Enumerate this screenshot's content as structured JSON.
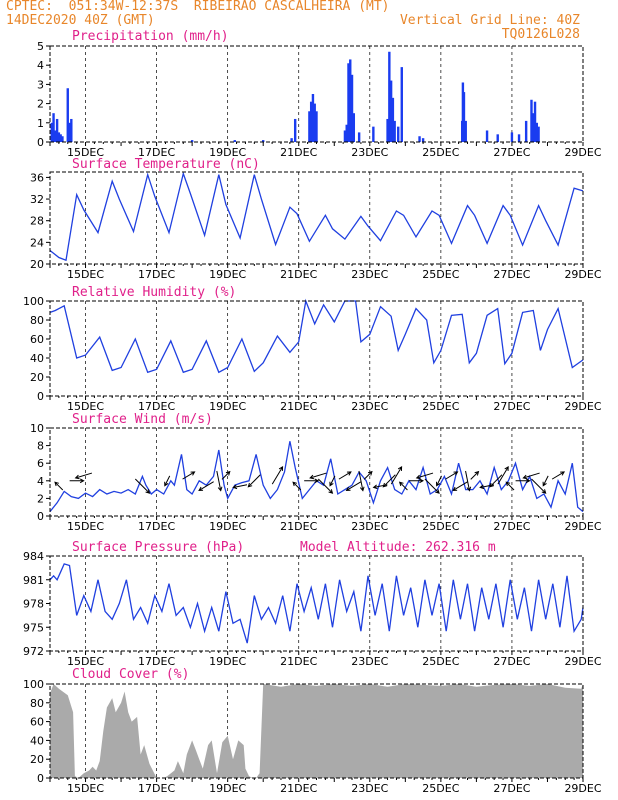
{
  "header": {
    "line1_left": "CPTEC:  051:34W-12:37S  RIBEIRAO CASCALHEIRA (MT)",
    "line2_left": "14DEC2020 40Z (GMT)",
    "line2_right": "Vertical Grid Line: 40Z",
    "line3_right": "TQ0126L028"
  },
  "colors": {
    "header": "#e8862a",
    "panel_title": "#e0208a",
    "line": "#2040e0",
    "bar": "#1a3cf0",
    "cloud": "#aaaaaa",
    "arrow": "#000000"
  },
  "x_tick_labels": [
    "15DEC",
    "17DEC",
    "19DEC",
    "21DEC",
    "23DEC",
    "25DEC",
    "27DEC",
    "29DEC"
  ],
  "chart_data": [
    {
      "type": "bar",
      "title": "Precipitation (mm/h)",
      "ylim": [
        0,
        5
      ],
      "yticks": [
        0,
        1,
        2,
        3,
        4,
        5
      ],
      "x_range_days": [
        14.0,
        29.0
      ],
      "series": [
        {
          "x": [
            14.05,
            14.1,
            14.15,
            14.2,
            14.25,
            14.3,
            14.35,
            14.5,
            14.55,
            14.6,
            18.0,
            19.2,
            20.0,
            20.8,
            20.9,
            21.3,
            21.32,
            21.35,
            21.4,
            21.45,
            21.5,
            22.3,
            22.35,
            22.4,
            22.45,
            22.5,
            22.55,
            22.7,
            23.1,
            23.5,
            23.55,
            23.6,
            23.65,
            23.7,
            23.8,
            23.9,
            24.4,
            24.5,
            25.6,
            25.62,
            25.65,
            25.7,
            26.3,
            26.6,
            27.0,
            27.2,
            27.4,
            27.55,
            27.6,
            27.65,
            27.7,
            27.75
          ],
          "values": [
            1.0,
            1.5,
            0.6,
            1.2,
            0.5,
            0.4,
            0.3,
            2.8,
            1.0,
            1.2,
            0.1,
            0.1,
            0.1,
            0.2,
            1.2,
            1.6,
            0.8,
            2.1,
            2.5,
            2.0,
            1.6,
            0.6,
            0.9,
            4.1,
            4.3,
            3.5,
            1.5,
            0.5,
            0.8,
            1.2,
            4.7,
            3.2,
            2.3,
            1.1,
            0.8,
            3.9,
            0.3,
            0.2,
            1.1,
            3.1,
            2.6,
            1.1,
            0.6,
            0.4,
            0.5,
            0.4,
            1.1,
            2.2,
            1.5,
            2.1,
            1.0,
            0.8
          ]
        }
      ]
    },
    {
      "type": "line",
      "title": "Surface Temperature (nC)",
      "ylim": [
        20,
        37
      ],
      "yticks": [
        20,
        24,
        28,
        32,
        36
      ],
      "x_range_days": [
        14.0,
        29.0
      ],
      "series": [
        {
          "x": [
            14.0,
            14.25,
            14.45,
            14.75,
            14.95,
            15.35,
            15.75,
            15.95,
            16.35,
            16.75,
            16.95,
            17.35,
            17.75,
            17.95,
            18.35,
            18.75,
            18.95,
            19.35,
            19.75,
            19.95,
            20.35,
            20.75,
            20.95,
            21.3,
            21.75,
            21.95,
            22.3,
            22.75,
            22.95,
            23.3,
            23.75,
            23.95,
            24.3,
            24.75,
            24.95,
            25.3,
            25.75,
            25.95,
            26.3,
            26.75,
            26.95,
            27.3,
            27.75,
            27.95,
            28.3,
            28.75,
            29.0
          ],
          "values": [
            22.5,
            21.2,
            20.7,
            32.8,
            30.0,
            25.8,
            35.3,
            32.0,
            26.0,
            36.5,
            32.5,
            25.8,
            36.7,
            33.0,
            25.3,
            36.5,
            31.0,
            24.8,
            36.5,
            32.0,
            23.6,
            30.5,
            29.3,
            24.2,
            29.0,
            26.5,
            24.6,
            28.8,
            27.0,
            24.3,
            29.8,
            29.0,
            25.0,
            29.8,
            29.0,
            23.8,
            30.8,
            29.0,
            23.8,
            30.8,
            29.0,
            23.5,
            30.8,
            28.0,
            23.5,
            34.0,
            33.5
          ]
        }
      ]
    },
    {
      "type": "line",
      "title": "Relative Humidity (%)",
      "ylim": [
        0,
        100
      ],
      "yticks": [
        0,
        20,
        40,
        60,
        80,
        100
      ],
      "x_range_days": [
        14.0,
        29.0
      ],
      "series": [
        {
          "x": [
            14.0,
            14.15,
            14.4,
            14.75,
            15.0,
            15.4,
            15.75,
            16.0,
            16.4,
            16.75,
            17.0,
            17.4,
            17.75,
            18.0,
            18.4,
            18.75,
            19.0,
            19.4,
            19.75,
            20.0,
            20.4,
            20.75,
            21.0,
            21.2,
            21.45,
            21.7,
            22.0,
            22.3,
            22.6,
            22.75,
            23.0,
            23.3,
            23.6,
            23.8,
            24.0,
            24.3,
            24.6,
            24.8,
            25.0,
            25.3,
            25.6,
            25.8,
            26.0,
            26.3,
            26.6,
            26.8,
            27.0,
            27.3,
            27.6,
            27.8,
            28.0,
            28.3,
            28.7,
            29.0
          ],
          "values": [
            88,
            90,
            95,
            40,
            43,
            62,
            27,
            30,
            60,
            25,
            28,
            58,
            25,
            28,
            58,
            25,
            30,
            60,
            26,
            35,
            63,
            46,
            57,
            100,
            76,
            96,
            78,
            100,
            100,
            57,
            65,
            94,
            84,
            48,
            65,
            92,
            80,
            35,
            48,
            85,
            86,
            35,
            45,
            85,
            92,
            34,
            45,
            88,
            90,
            48,
            70,
            92,
            30,
            38
          ]
        }
      ]
    },
    {
      "type": "line",
      "title": "Surface Wind (m/s)",
      "ylim": [
        0,
        10
      ],
      "yticks": [
        0,
        2,
        4,
        6,
        8,
        10
      ],
      "x_range_days": [
        14.0,
        29.0
      ],
      "series": [
        {
          "x": [
            14.0,
            14.2,
            14.4,
            14.6,
            14.8,
            15.0,
            15.2,
            15.4,
            15.6,
            15.8,
            16.0,
            16.2,
            16.4,
            16.6,
            16.7,
            16.85,
            17.0,
            17.2,
            17.4,
            17.5,
            17.7,
            17.85,
            18.0,
            18.2,
            18.4,
            18.6,
            18.75,
            18.9,
            19.0,
            19.2,
            19.4,
            19.6,
            19.8,
            20.0,
            20.2,
            20.4,
            20.6,
            20.75,
            20.9,
            21.1,
            21.3,
            21.5,
            21.7,
            21.9,
            22.1,
            22.3,
            22.5,
            22.7,
            22.9,
            23.1,
            23.3,
            23.5,
            23.7,
            23.9,
            24.1,
            24.3,
            24.5,
            24.7,
            24.9,
            25.1,
            25.3,
            25.5,
            25.7,
            25.9,
            26.1,
            26.3,
            26.5,
            26.7,
            26.9,
            27.1,
            27.3,
            27.5,
            27.7,
            27.9,
            28.1,
            28.3,
            28.5,
            28.7,
            28.85,
            29.0
          ],
          "values": [
            0.5,
            1.5,
            2.8,
            2.2,
            2.0,
            2.6,
            2.2,
            3.0,
            2.5,
            2.8,
            2.6,
            3.0,
            2.5,
            4.5,
            3.5,
            2.5,
            3.0,
            2.5,
            4.0,
            3.5,
            7.0,
            3.0,
            2.5,
            4.0,
            3.5,
            4.5,
            7.5,
            3.5,
            2.0,
            3.5,
            3.8,
            4.0,
            7.0,
            3.5,
            2.0,
            3.0,
            5.0,
            8.5,
            5.5,
            2.0,
            3.0,
            4.0,
            3.5,
            6.5,
            2.5,
            3.0,
            3.5,
            5.0,
            4.0,
            1.5,
            4.0,
            5.5,
            3.0,
            2.5,
            4.0,
            3.0,
            5.5,
            2.5,
            3.0,
            4.5,
            2.5,
            6.0,
            3.0,
            3.0,
            4.0,
            2.5,
            5.5,
            3.0,
            4.0,
            6.0,
            3.0,
            4.5,
            2.0,
            2.5,
            1.0,
            4.0,
            2.5,
            6.0,
            1.0,
            0.5
          ]
        }
      ],
      "wind_vector_times": [
        14.25,
        14.75,
        14.95,
        16.6,
        17.3,
        17.9,
        18.4,
        18.75,
        18.95,
        19.35,
        19.75,
        20.4,
        20.95,
        21.35,
        21.55,
        21.75,
        21.95,
        22.3,
        22.55,
        22.75,
        22.95,
        23.3,
        23.55,
        23.75,
        23.95,
        24.3,
        24.55,
        24.75,
        24.95,
        25.3,
        25.55,
        25.75,
        25.95,
        26.3,
        26.55,
        26.75,
        26.95,
        27.3,
        27.55,
        27.75,
        27.95,
        28.3
      ]
    },
    {
      "type": "line",
      "title": "Surface Pressure (hPa)",
      "annotation": "Model Altitude: 262.316 m",
      "ylim": [
        972,
        984
      ],
      "yticks": [
        972,
        975,
        978,
        981,
        984
      ],
      "x_range_days": [
        14.0,
        29.0
      ],
      "series": [
        {
          "x": [
            14.0,
            14.1,
            14.2,
            14.3,
            14.4,
            14.55,
            14.75,
            14.95,
            15.15,
            15.35,
            15.55,
            15.75,
            15.95,
            16.15,
            16.35,
            16.55,
            16.75,
            16.95,
            17.15,
            17.35,
            17.55,
            17.75,
            17.95,
            18.15,
            18.35,
            18.55,
            18.75,
            18.95,
            19.15,
            19.35,
            19.55,
            19.75,
            19.95,
            20.15,
            20.35,
            20.55,
            20.75,
            20.95,
            21.15,
            21.35,
            21.55,
            21.75,
            21.95,
            22.15,
            22.35,
            22.55,
            22.75,
            22.95,
            23.15,
            23.35,
            23.55,
            23.75,
            23.95,
            24.15,
            24.35,
            24.55,
            24.75,
            24.95,
            25.15,
            25.35,
            25.55,
            25.75,
            25.95,
            26.15,
            26.35,
            26.55,
            26.75,
            26.95,
            27.15,
            27.35,
            27.55,
            27.75,
            27.95,
            28.15,
            28.35,
            28.55,
            28.75,
            28.95,
            29.0
          ],
          "values": [
            981.0,
            981.5,
            981.0,
            982.0,
            983.0,
            982.8,
            976.5,
            979.0,
            977.0,
            981.0,
            977.0,
            976.0,
            978.0,
            981.0,
            976.0,
            977.5,
            975.5,
            979.0,
            977.0,
            980.5,
            976.5,
            977.5,
            975.0,
            978.0,
            974.5,
            977.5,
            974.5,
            979.5,
            975.5,
            976.0,
            973.0,
            979.0,
            976.0,
            977.5,
            975.5,
            979.0,
            974.5,
            980.5,
            977.0,
            980.0,
            976.0,
            980.5,
            975.0,
            981.0,
            977.0,
            979.5,
            974.5,
            981.5,
            976.5,
            980.5,
            974.5,
            981.5,
            976.5,
            980.0,
            975.0,
            981.0,
            976.5,
            980.5,
            974.5,
            981.0,
            976.0,
            980.5,
            974.5,
            980.0,
            976.0,
            980.5,
            975.0,
            981.0,
            976.0,
            980.0,
            974.5,
            981.0,
            976.0,
            980.5,
            975.0,
            981.5,
            974.5,
            976.0,
            977.5
          ]
        }
      ]
    },
    {
      "type": "area",
      "title": "Cloud Cover (%)",
      "ylim": [
        0,
        100
      ],
      "yticks": [
        0,
        20,
        40,
        60,
        80,
        100
      ],
      "x_range_days": [
        14.0,
        29.0
      ],
      "series": [
        {
          "x": [
            14.0,
            14.1,
            14.25,
            14.5,
            14.65,
            14.7,
            14.8,
            14.95,
            15.1,
            15.2,
            15.3,
            15.4,
            15.5,
            15.6,
            15.75,
            15.85,
            16.0,
            16.1,
            16.2,
            16.3,
            16.45,
            16.55,
            16.65,
            16.8,
            17.0,
            17.2,
            17.3,
            17.5,
            17.6,
            17.75,
            17.85,
            18.0,
            18.1,
            18.2,
            18.3,
            18.45,
            18.55,
            18.7,
            18.85,
            19.0,
            19.15,
            19.3,
            19.45,
            19.5,
            19.6,
            19.7,
            19.8,
            19.9,
            20.0,
            20.5,
            21.0,
            21.5,
            22.0,
            22.5,
            23.0,
            23.5,
            24.0,
            24.5,
            25.0,
            25.5,
            26.0,
            26.5,
            27.0,
            27.5,
            28.0,
            28.5,
            28.95,
            29.0
          ],
          "values": [
            90,
            100,
            95,
            88,
            70,
            2,
            0,
            5,
            8,
            12,
            8,
            18,
            50,
            75,
            85,
            70,
            80,
            92,
            70,
            60,
            65,
            25,
            35,
            15,
            0,
            0,
            2,
            8,
            18,
            5,
            25,
            40,
            30,
            20,
            10,
            35,
            40,
            5,
            38,
            45,
            20,
            40,
            35,
            10,
            2,
            0,
            0,
            5,
            100,
            97,
            100,
            98,
            100,
            98,
            100,
            97,
            100,
            99,
            98,
            100,
            97,
            99,
            100,
            98,
            100,
            96,
            95,
            100
          ]
        }
      ]
    }
  ]
}
